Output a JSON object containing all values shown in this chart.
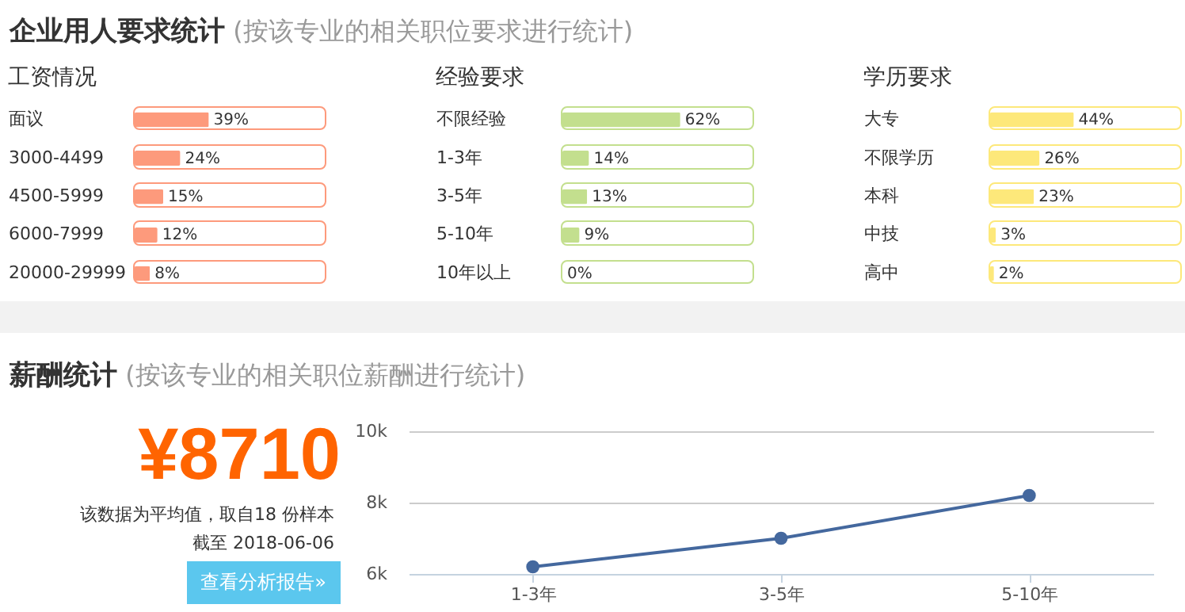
{
  "chart_data": [
    {
      "type": "other",
      "title": "企业用人要求统计",
      "subtitle": "(按该专业的相关职位要求进行统计)"
    },
    {
      "type": "bar",
      "orientation": "horizontal",
      "title": "工资情况",
      "categories": [
        "面议",
        "3000-4499",
        "4500-5999",
        "6000-7999",
        "20000-29999"
      ],
      "values": [
        39,
        24,
        15,
        12,
        8
      ],
      "value_labels": [
        "39%",
        "24%",
        "15%",
        "12%",
        "8%"
      ],
      "color": "#fd9a7c",
      "xlim": [
        0,
        100
      ],
      "tick_labels": "y"
    },
    {
      "type": "bar",
      "orientation": "horizontal",
      "title": "经验要求",
      "categories": [
        "不限经验",
        "1-3年",
        "3-5年",
        "5-10年",
        "10年以上"
      ],
      "values": [
        62,
        14,
        13,
        9,
        0
      ],
      "value_labels": [
        "62%",
        "14%",
        "13%",
        "9%",
        "0%"
      ],
      "color": "#c3df8e",
      "xlim": [
        0,
        100
      ],
      "tick_labels": "y"
    },
    {
      "type": "bar",
      "orientation": "horizontal",
      "title": "学历要求",
      "categories": [
        "大专",
        "不限学历",
        "本科",
        "中技",
        "高中"
      ],
      "values": [
        44,
        26,
        23,
        3,
        2
      ],
      "value_labels": [
        "44%",
        "26%",
        "23%",
        "3%",
        "2%"
      ],
      "color": "#fde87a",
      "xlim": [
        0,
        100
      ],
      "tick_labels": "y"
    },
    {
      "type": "other",
      "title": "薪酬统计",
      "subtitle": "(按该专业的相关职位薪酬进行统计)",
      "annotations": [
        "¥8710",
        "该数据为平均值，取自18 份样本",
        "截至 2018-06-06",
        "查看分析报告»"
      ]
    },
    {
      "type": "line",
      "categories": [
        "1-3年",
        "3-5年",
        "5-10年"
      ],
      "values": [
        6200,
        7000,
        8200
      ],
      "color": "#44689e",
      "ylim": [
        6000,
        10000
      ],
      "yticks": [
        {
          "value": 6000,
          "label": "6k"
        },
        {
          "value": 8000,
          "label": "8k"
        },
        {
          "value": 10000,
          "label": "10k"
        }
      ],
      "grid": "y",
      "marker": "circle"
    }
  ]
}
